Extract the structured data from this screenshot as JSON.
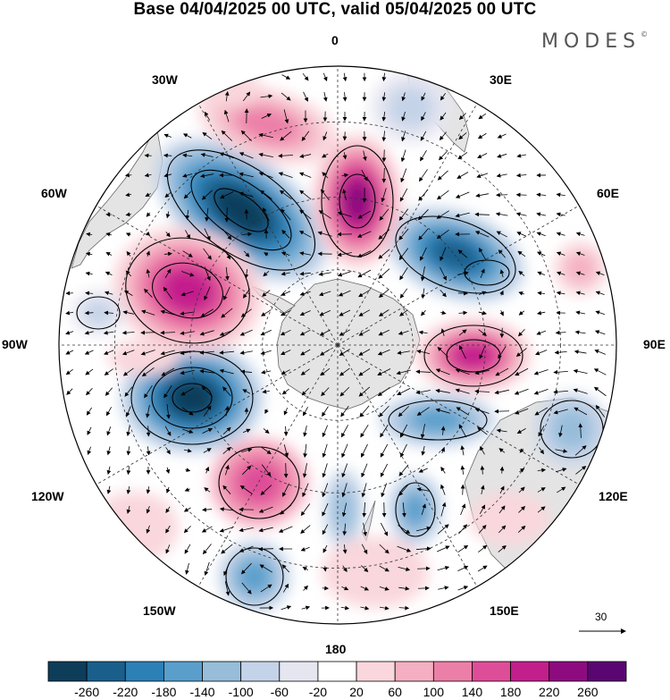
{
  "title": "Base 04/04/2025 00 UTC, valid 05/04/2025 00 UTC",
  "brand": "MODES",
  "brand_mark": "©",
  "longitude_labels": {
    "lon_0": "0",
    "lon_30e": "30E",
    "lon_60e": "60E",
    "lon_90e": "90E",
    "lon_120e": "120E",
    "lon_150e": "150E",
    "lon_180": "180",
    "lon_150w": "150W",
    "lon_120w": "120W",
    "lon_90w": "90W",
    "lon_60w": "60W",
    "lon_30w": "30W"
  },
  "reference_vector": {
    "value": "30"
  },
  "colorbar": {
    "tick_labels": [
      "-260",
      "-220",
      "-180",
      "-140",
      "-100",
      "-60",
      "-20",
      "20",
      "60",
      "100",
      "140",
      "180",
      "220",
      "260"
    ],
    "colors": [
      "#0e3d5a",
      "#1a5f8c",
      "#2b80b6",
      "#5a9fcc",
      "#97bddb",
      "#c4d3e8",
      "#e6e6f1",
      "#ffffff",
      "#f9d7dc",
      "#f4b0c2",
      "#ec7fa8",
      "#de4d98",
      "#c31f8c",
      "#8e0b7f",
      "#5a0572"
    ]
  },
  "colors": {
    "land": "#e4e4e4",
    "background": "#ffffff",
    "coast": "#666666",
    "graticule": "#333333"
  }
}
